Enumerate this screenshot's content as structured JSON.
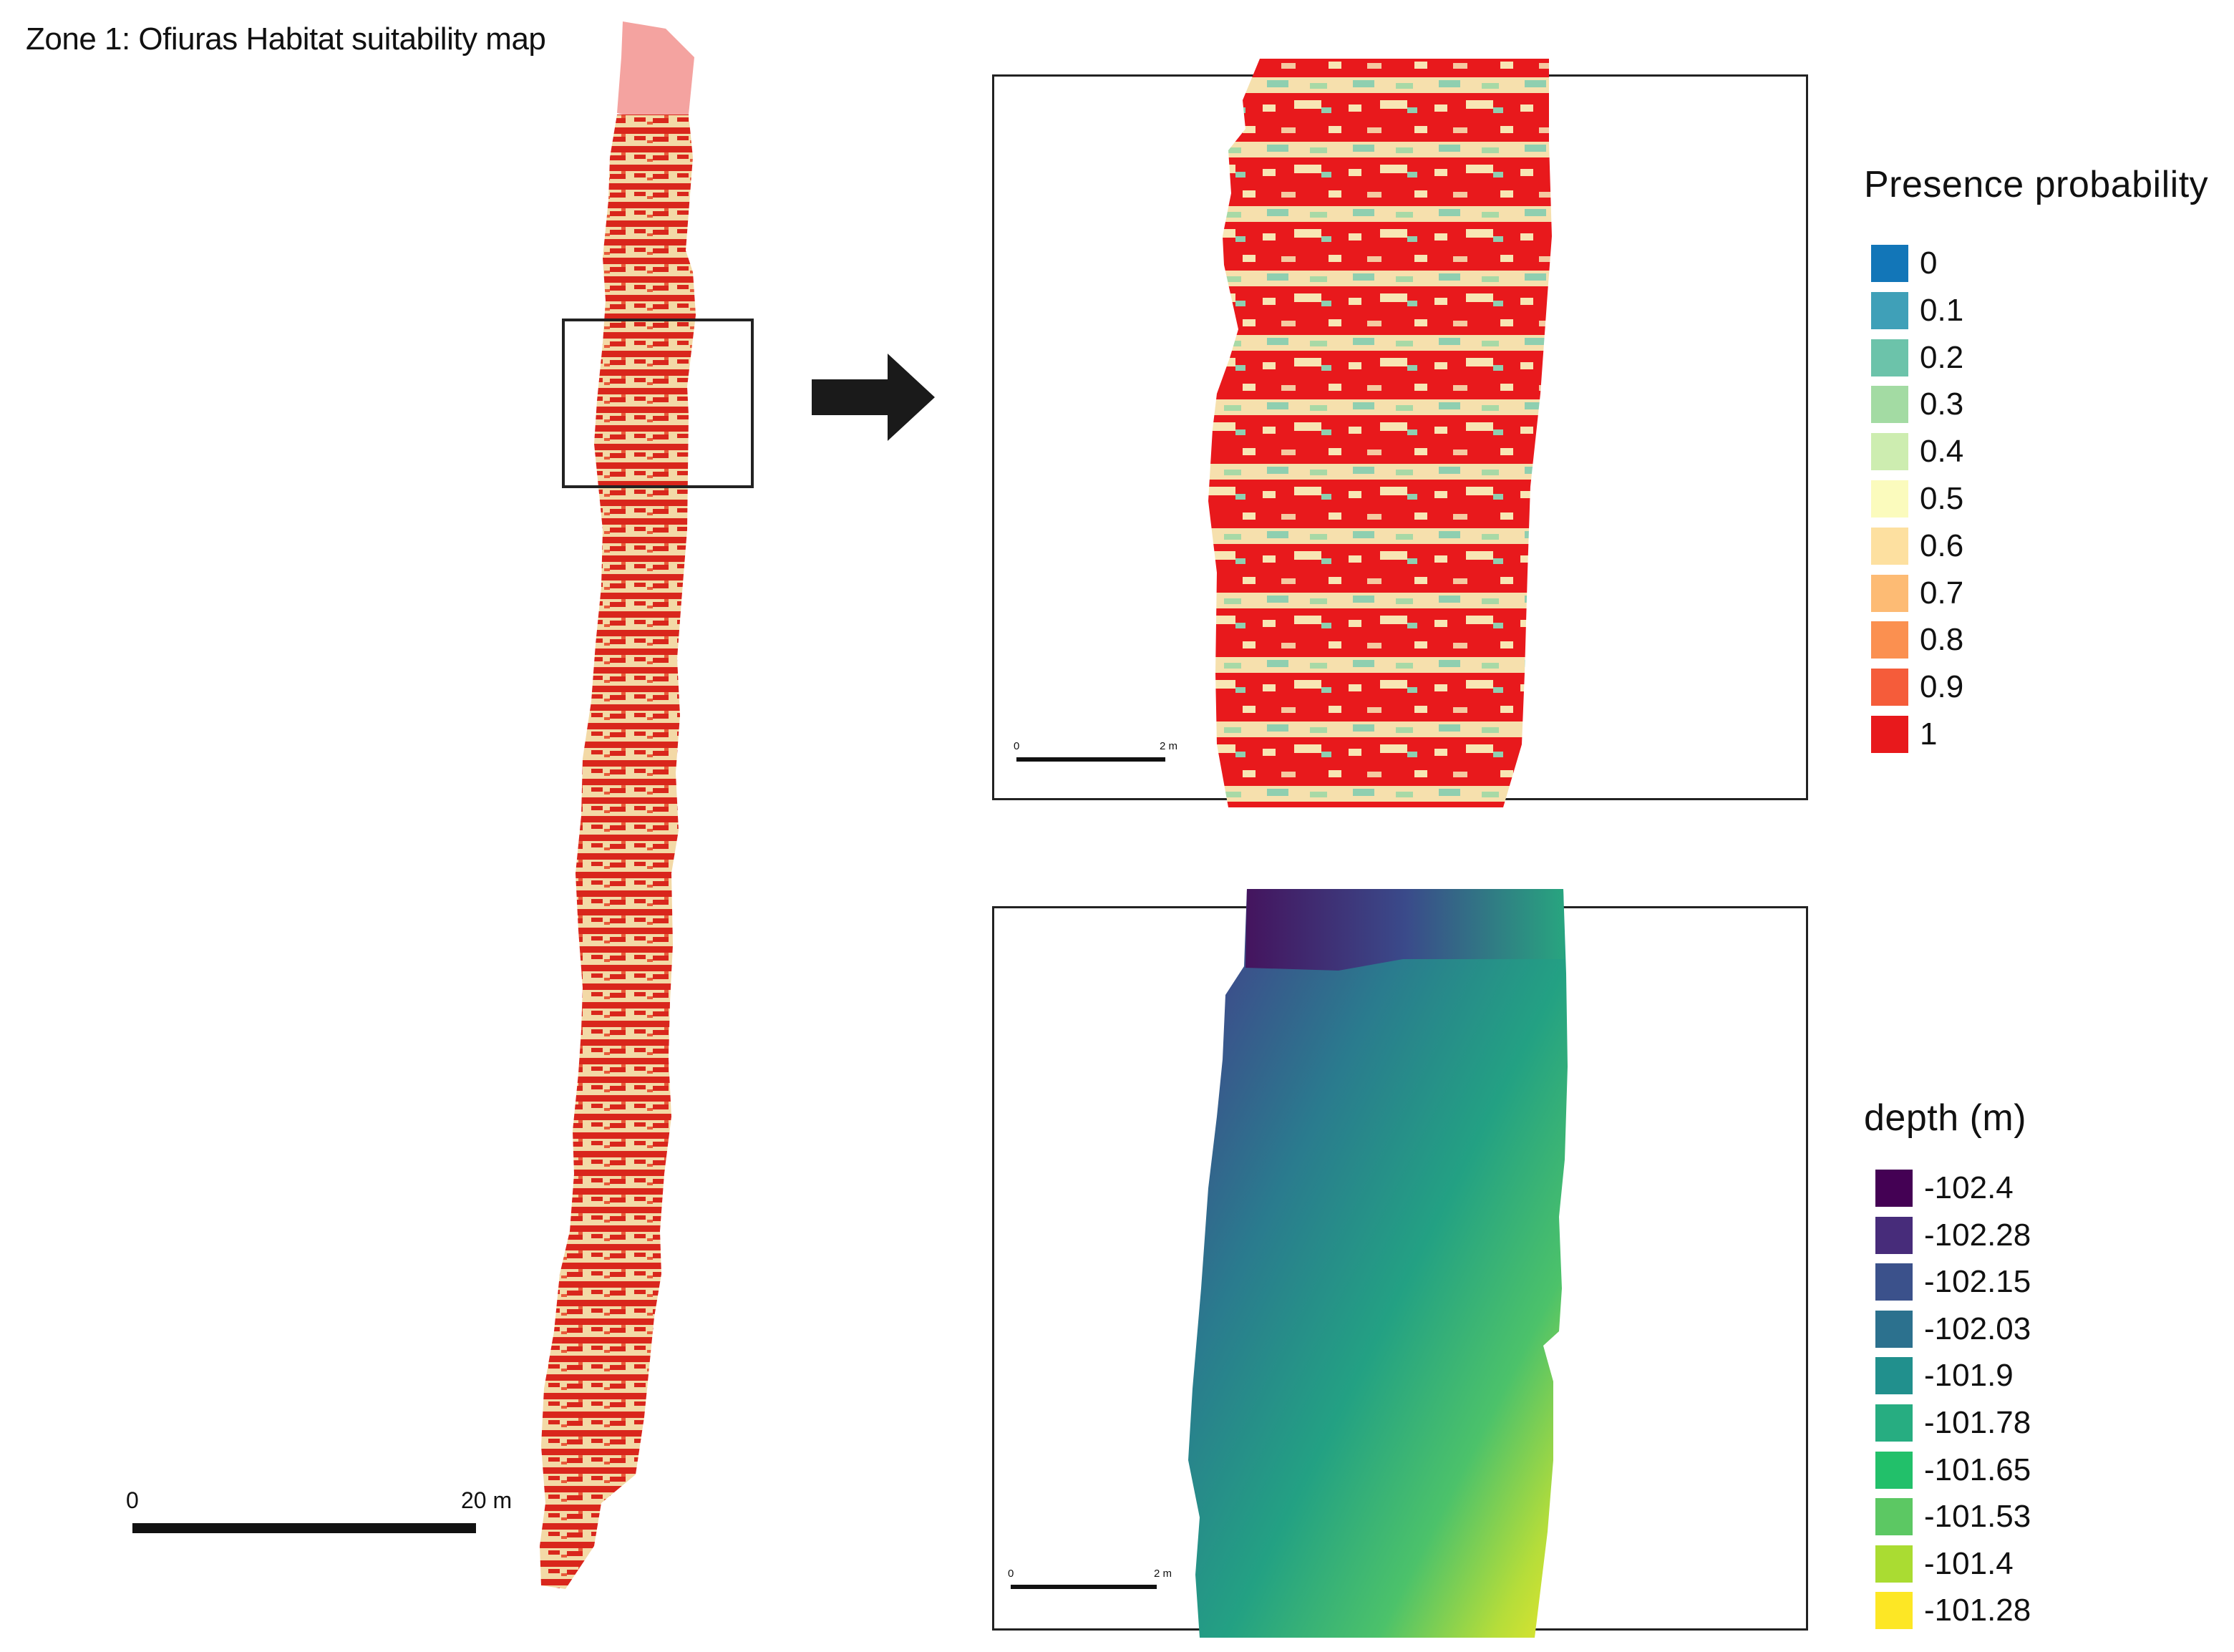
{
  "title": "Zone 1: Ofiuras Habitat suitability map",
  "main_scalebar": {
    "start": "0",
    "end": "20 m"
  },
  "inset_scalebar": {
    "start": "0",
    "end": "2 m"
  },
  "presence_legend": {
    "title": "Presence probability",
    "items": [
      {
        "label": "0",
        "color": "#1276b8"
      },
      {
        "label": "0.1",
        "color": "#3fa0b8"
      },
      {
        "label": "0.2",
        "color": "#6cc3aa"
      },
      {
        "label": "0.3",
        "color": "#a3dba3"
      },
      {
        "label": "0.4",
        "color": "#cdedb0"
      },
      {
        "label": "0.5",
        "color": "#fbfbbd"
      },
      {
        "label": "0.6",
        "color": "#fde0a0"
      },
      {
        "label": "0.7",
        "color": "#fdbb74"
      },
      {
        "label": "0.8",
        "color": "#fb9050"
      },
      {
        "label": "0.9",
        "color": "#f55c3a"
      },
      {
        "label": "1",
        "color": "#e8191c"
      }
    ]
  },
  "depth_legend": {
    "title": "depth (m)",
    "items": [
      {
        "label": "-102.4",
        "color": "#440154"
      },
      {
        "label": "-102.28",
        "color": "#472c7a"
      },
      {
        "label": "-102.15",
        "color": "#3b518b"
      },
      {
        "label": "-102.03",
        "color": "#2c718e"
      },
      {
        "label": "-101.9",
        "color": "#21908d"
      },
      {
        "label": "-101.78",
        "color": "#27ad81"
      },
      {
        "label": "-101.65",
        "color": "#22c06a"
      },
      {
        "label": "-101.53",
        "color": "#5cc863"
      },
      {
        "label": "-101.4",
        "color": "#aadc32"
      },
      {
        "label": "-101.28",
        "color": "#fde725"
      }
    ]
  }
}
